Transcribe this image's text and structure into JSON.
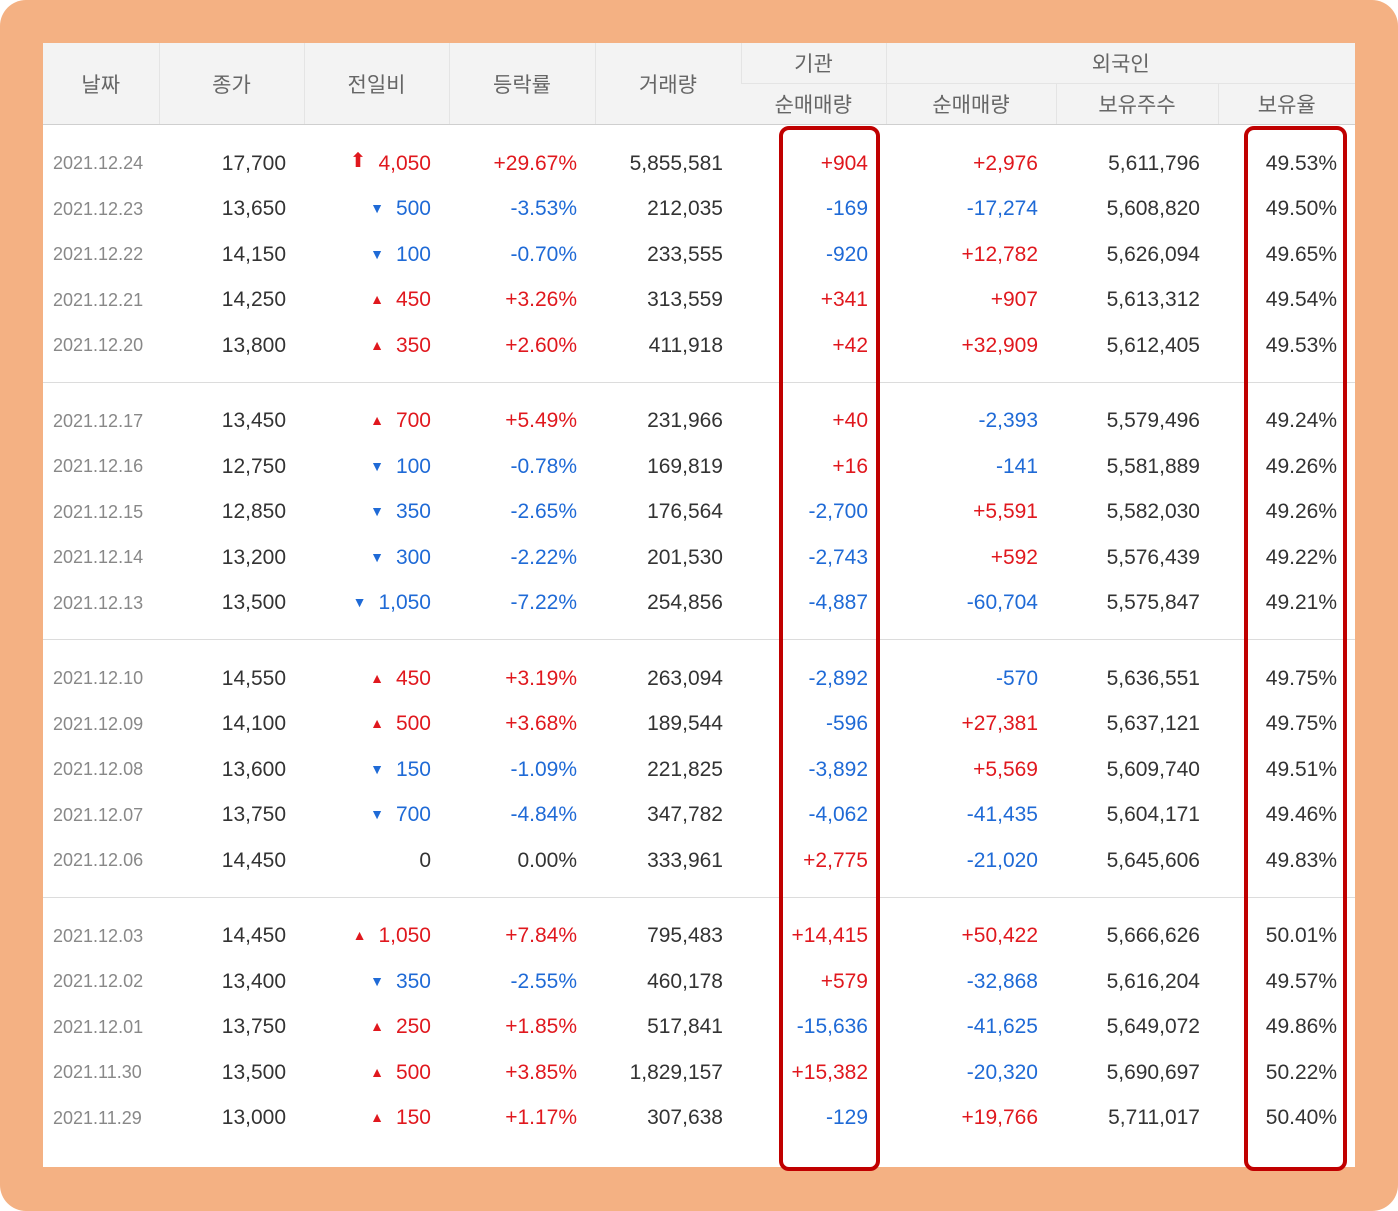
{
  "colors": {
    "frame": "#f4b183",
    "highlight": "#c00000",
    "up": "#e0181e",
    "down": "#1f6ad6"
  },
  "header": {
    "date": "날짜",
    "close": "종가",
    "change": "전일비",
    "rate": "등락률",
    "volume": "거래량",
    "institution": "기관",
    "foreigner": "외국인",
    "inst_net": "순매매량",
    "for_net": "순매매량",
    "for_shares": "보유주수",
    "for_ratio": "보유율"
  },
  "groups": [
    {
      "rows": [
        {
          "date": "2021.12.24",
          "close": "17,700",
          "dir": "upper",
          "change": "4,050",
          "rate": "+29.67%",
          "volume": "5,855,581",
          "inst": "+904",
          "fnet": "+2,976",
          "shares": "5,611,796",
          "ratio": "49.53%"
        },
        {
          "date": "2021.12.23",
          "close": "13,650",
          "dir": "down",
          "change": "500",
          "rate": "-3.53%",
          "volume": "212,035",
          "inst": "-169",
          "fnet": "-17,274",
          "shares": "5,608,820",
          "ratio": "49.50%"
        },
        {
          "date": "2021.12.22",
          "close": "14,150",
          "dir": "down",
          "change": "100",
          "rate": "-0.70%",
          "volume": "233,555",
          "inst": "-920",
          "fnet": "+12,782",
          "shares": "5,626,094",
          "ratio": "49.65%"
        },
        {
          "date": "2021.12.21",
          "close": "14,250",
          "dir": "up",
          "change": "450",
          "rate": "+3.26%",
          "volume": "313,559",
          "inst": "+341",
          "fnet": "+907",
          "shares": "5,613,312",
          "ratio": "49.54%"
        },
        {
          "date": "2021.12.20",
          "close": "13,800",
          "dir": "up",
          "change": "350",
          "rate": "+2.60%",
          "volume": "411,918",
          "inst": "+42",
          "fnet": "+32,909",
          "shares": "5,612,405",
          "ratio": "49.53%"
        }
      ]
    },
    {
      "rows": [
        {
          "date": "2021.12.17",
          "close": "13,450",
          "dir": "up",
          "change": "700",
          "rate": "+5.49%",
          "volume": "231,966",
          "inst": "+40",
          "fnet": "-2,393",
          "shares": "5,579,496",
          "ratio": "49.24%"
        },
        {
          "date": "2021.12.16",
          "close": "12,750",
          "dir": "down",
          "change": "100",
          "rate": "-0.78%",
          "volume": "169,819",
          "inst": "+16",
          "fnet": "-141",
          "shares": "5,581,889",
          "ratio": "49.26%"
        },
        {
          "date": "2021.12.15",
          "close": "12,850",
          "dir": "down",
          "change": "350",
          "rate": "-2.65%",
          "volume": "176,564",
          "inst": "-2,700",
          "fnet": "+5,591",
          "shares": "5,582,030",
          "ratio": "49.26%"
        },
        {
          "date": "2021.12.14",
          "close": "13,200",
          "dir": "down",
          "change": "300",
          "rate": "-2.22%",
          "volume": "201,530",
          "inst": "-2,743",
          "fnet": "+592",
          "shares": "5,576,439",
          "ratio": "49.22%"
        },
        {
          "date": "2021.12.13",
          "close": "13,500",
          "dir": "down",
          "change": "1,050",
          "rate": "-7.22%",
          "volume": "254,856",
          "inst": "-4,887",
          "fnet": "-60,704",
          "shares": "5,575,847",
          "ratio": "49.21%"
        }
      ]
    },
    {
      "rows": [
        {
          "date": "2021.12.10",
          "close": "14,550",
          "dir": "up",
          "change": "450",
          "rate": "+3.19%",
          "volume": "263,094",
          "inst": "-2,892",
          "fnet": "-570",
          "shares": "5,636,551",
          "ratio": "49.75%"
        },
        {
          "date": "2021.12.09",
          "close": "14,100",
          "dir": "up",
          "change": "500",
          "rate": "+3.68%",
          "volume": "189,544",
          "inst": "-596",
          "fnet": "+27,381",
          "shares": "5,637,121",
          "ratio": "49.75%"
        },
        {
          "date": "2021.12.08",
          "close": "13,600",
          "dir": "down",
          "change": "150",
          "rate": "-1.09%",
          "volume": "221,825",
          "inst": "-3,892",
          "fnet": "+5,569",
          "shares": "5,609,740",
          "ratio": "49.51%"
        },
        {
          "date": "2021.12.07",
          "close": "13,750",
          "dir": "down",
          "change": "700",
          "rate": "-4.84%",
          "volume": "347,782",
          "inst": "-4,062",
          "fnet": "-41,435",
          "shares": "5,604,171",
          "ratio": "49.46%"
        },
        {
          "date": "2021.12.06",
          "close": "14,450",
          "dir": "flat",
          "change": "0",
          "rate": "0.00%",
          "volume": "333,961",
          "inst": "+2,775",
          "fnet": "-21,020",
          "shares": "5,645,606",
          "ratio": "49.83%"
        }
      ]
    },
    {
      "rows": [
        {
          "date": "2021.12.03",
          "close": "14,450",
          "dir": "up",
          "change": "1,050",
          "rate": "+7.84%",
          "volume": "795,483",
          "inst": "+14,415",
          "fnet": "+50,422",
          "shares": "5,666,626",
          "ratio": "50.01%"
        },
        {
          "date": "2021.12.02",
          "close": "13,400",
          "dir": "down",
          "change": "350",
          "rate": "-2.55%",
          "volume": "460,178",
          "inst": "+579",
          "fnet": "-32,868",
          "shares": "5,616,204",
          "ratio": "49.57%"
        },
        {
          "date": "2021.12.01",
          "close": "13,750",
          "dir": "up",
          "change": "250",
          "rate": "+1.85%",
          "volume": "517,841",
          "inst": "-15,636",
          "fnet": "-41,625",
          "shares": "5,649,072",
          "ratio": "49.86%"
        },
        {
          "date": "2021.11.30",
          "close": "13,500",
          "dir": "up",
          "change": "500",
          "rate": "+3.85%",
          "volume": "1,829,157",
          "inst": "+15,382",
          "fnet": "-20,320",
          "shares": "5,690,697",
          "ratio": "50.22%"
        },
        {
          "date": "2021.11.29",
          "close": "13,000",
          "dir": "up",
          "change": "150",
          "rate": "+1.17%",
          "volume": "307,638",
          "inst": "-129",
          "fnet": "+19,766",
          "shares": "5,711,017",
          "ratio": "50.40%"
        }
      ]
    }
  ]
}
